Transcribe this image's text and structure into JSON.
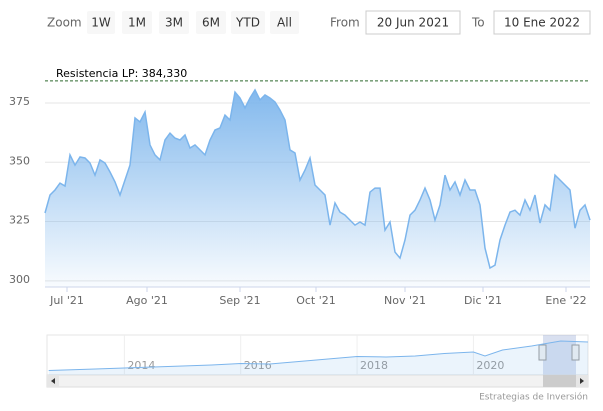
{
  "range_selector": {
    "zoom_label": "Zoom",
    "buttons": [
      "1W",
      "1M",
      "3M",
      "6M",
      "YTD",
      "All"
    ],
    "from_label": "From",
    "from_value": "20 Jun 2021",
    "to_label": "To",
    "to_value": "10 Ene 2022"
  },
  "credits": "Estrategias de Inversión",
  "chart_data": {
    "type": "area",
    "color": "#7cb5ec",
    "values": [
      328.6,
      336.2,
      338.3,
      341.2,
      340.0,
      353.1,
      348.8,
      352.2,
      351.8,
      349.7,
      344.6,
      351.0,
      349.7,
      345.9,
      341.7,
      336.2,
      342.5,
      348.8,
      368.7,
      367.0,
      371.2,
      357.3,
      353.1,
      351.0,
      359.4,
      362.3,
      360.2,
      359.4,
      361.5,
      356.0,
      357.3,
      355.2,
      353.1,
      359.4,
      363.6,
      364.5,
      369.9,
      367.8,
      379.6,
      377.1,
      372.9,
      377.1,
      380.5,
      376.3,
      378.4,
      377.1,
      375.4,
      372.0,
      367.8,
      355.2,
      353.9,
      342.5,
      346.7,
      351.8,
      340.4,
      338.3,
      336.2,
      323.5,
      332.8,
      329.0,
      327.7,
      325.6,
      323.5,
      324.8,
      323.5,
      337.4,
      339.1,
      339.1,
      321.4,
      324.8,
      312.1,
      309.6,
      317.2,
      327.7,
      329.8,
      334.1,
      339.1,
      334.1,
      325.6,
      332.0,
      344.6,
      338.3,
      341.7,
      336.2,
      342.5,
      338.3,
      338.3,
      332.0,
      313.8,
      305.4,
      306.6,
      317.2,
      323.5,
      329.0,
      329.8,
      327.7,
      334.1,
      329.8,
      336.2,
      324.4,
      332.0,
      329.8,
      344.6,
      342.5,
      340.4,
      338.3,
      322.2,
      329.8,
      332.0,
      325.6
    ],
    "xlim": [
      0,
      109
    ],
    "xticks": [
      {
        "value": 4.4,
        "label": "Jul '21"
      },
      {
        "value": 20.4,
        "label": "Ago '21"
      },
      {
        "value": 39,
        "label": "Sep '21"
      },
      {
        "value": 54.2,
        "label": "Oct '21"
      },
      {
        "value": 72,
        "label": "Nov '21"
      },
      {
        "value": 87.6,
        "label": "Dic '21"
      },
      {
        "value": 104.2,
        "label": "Ene '22"
      }
    ],
    "ylim": [
      297.4,
      388.9
    ],
    "yticks": [
      300,
      325,
      350,
      375
    ],
    "grid": true,
    "plot_line": {
      "value": 384.33,
      "label": "Resistencia LP: 384,330"
    },
    "navigator": {
      "x": [
        2012.7,
        2013.5,
        2014.5,
        2015.5,
        2016,
        2016.5,
        2017,
        2017.5,
        2018,
        2018.5,
        2019,
        2019.5,
        2020,
        2020.2,
        2020.5,
        2021,
        2021.5,
        2021.97
      ],
      "values": [
        45,
        60,
        80,
        100,
        115,
        110,
        135,
        160,
        185,
        180,
        190,
        215,
        230,
        190,
        250,
        290,
        340,
        330
      ],
      "xlim": [
        2012.67,
        2021.97
      ],
      "ylim": [
        0,
        400
      ],
      "xticks": [
        2014,
        2016,
        2018,
        2020
      ]
    }
  }
}
